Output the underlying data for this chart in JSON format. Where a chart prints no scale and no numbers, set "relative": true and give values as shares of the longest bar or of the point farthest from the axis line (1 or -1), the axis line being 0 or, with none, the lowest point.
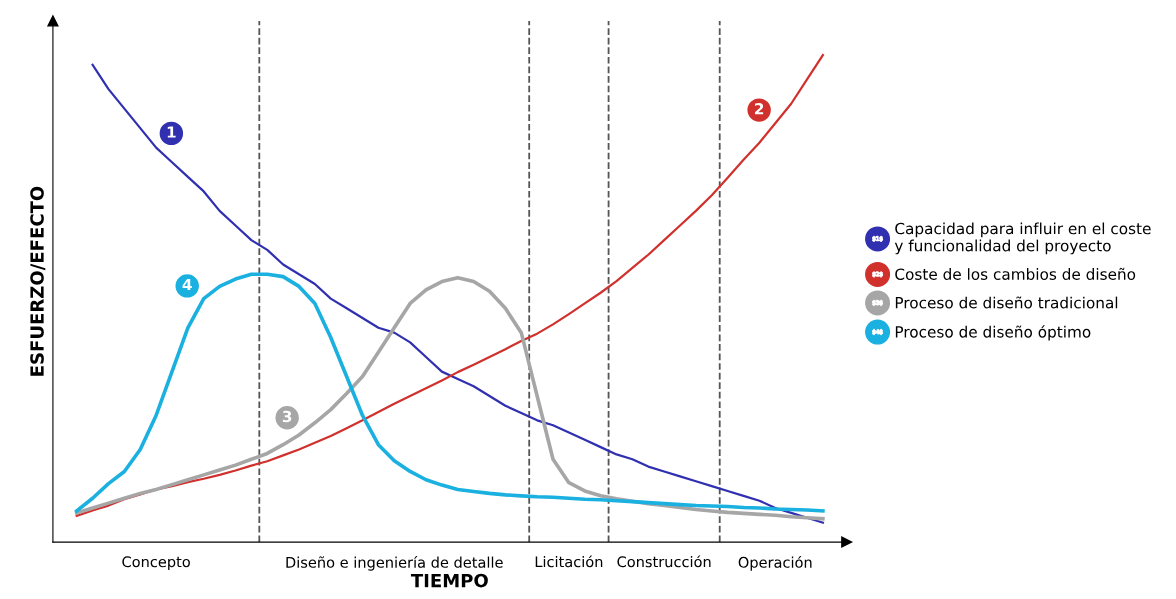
{
  "chart_data": {
    "type": "line",
    "relative": true,
    "xlabel": "TIEMPO",
    "ylabel": "ESFUERZO/EFECTO",
    "categories": [
      null,
      null,
      null,
      null,
      null,
      "Concepto",
      null,
      null,
      null,
      null,
      null,
      null,
      null,
      null,
      null,
      null,
      null,
      null,
      null,
      null,
      "Diseño e ingeniería de detalle",
      null,
      null,
      null,
      null,
      null,
      null,
      null,
      null,
      null,
      null,
      "Licitación",
      null,
      null,
      null,
      null,
      null,
      "Construcción",
      null,
      null,
      null,
      null,
      null,
      null,
      "Operación",
      null,
      null,
      null
    ],
    "tick_labels": "x",
    "grid": false,
    "legend": "right",
    "marker": "none",
    "line_style": "solid",
    "series": [
      {
        "name": "Capacidad para influir en el coste\ny funcionalidad del proyecto",
        "color": "#3030b0",
        "values": [
          null,
          0.98,
          0.93,
          0.89,
          0.85,
          0.81,
          0.78,
          0.75,
          0.72,
          0.68,
          0.65,
          0.62,
          0.6,
          0.57,
          0.55,
          0.53,
          0.5,
          0.48,
          0.46,
          0.44,
          0.43,
          0.41,
          0.38,
          0.35,
          0.335,
          0.32,
          0.3,
          0.28,
          0.265,
          0.25,
          0.24,
          0.225,
          0.21,
          0.195,
          0.18,
          0.17,
          0.155,
          0.145,
          0.135,
          0.125,
          0.115,
          0.105,
          0.095,
          0.085,
          0.07,
          0.06,
          0.05,
          0.04
        ]
      },
      {
        "name": "Coste de los cambios de diseño",
        "color": "#d0312d",
        "values": [
          0.054,
          0.065,
          0.075,
          0.088,
          0.098,
          0.108,
          0.115,
          0.123,
          0.13,
          0.138,
          0.147,
          0.157,
          0.166,
          0.178,
          0.19,
          0.204,
          0.218,
          0.234,
          0.25,
          0.267,
          0.284,
          0.3,
          0.316,
          0.332,
          0.349,
          0.364,
          0.38,
          0.396,
          0.413,
          0.428,
          0.447,
          0.468,
          0.49,
          0.512,
          0.536,
          0.563,
          0.59,
          0.62,
          0.65,
          0.68,
          0.712,
          0.748,
          0.785,
          0.82,
          0.86,
          0.9,
          0.95,
          1.0
        ]
      },
      {
        "name": "Proceso de diseño tradicional",
        "color": "#a6a6a6",
        "values": [
          0.06,
          0.07,
          0.08,
          0.09,
          0.1,
          0.108,
          0.118,
          0.128,
          0.138,
          0.148,
          0.158,
          0.17,
          0.182,
          0.2,
          0.22,
          0.245,
          0.272,
          0.305,
          0.34,
          0.39,
          0.44,
          0.49,
          0.518,
          0.535,
          0.543,
          0.535,
          0.515,
          0.48,
          0.43,
          0.3,
          0.17,
          0.122,
          0.105,
          0.095,
          0.089,
          0.084,
          0.079,
          0.075,
          0.071,
          0.067,
          0.064,
          0.061,
          0.059,
          0.057,
          0.055,
          0.052,
          0.05,
          0.048
        ]
      },
      {
        "name": "Proceso de diseño óptimo",
        "color": "#1ab0e0",
        "values": [
          0.064,
          0.09,
          0.12,
          0.145,
          0.19,
          0.26,
          0.35,
          0.44,
          0.5,
          0.525,
          0.54,
          0.55,
          0.55,
          0.545,
          0.525,
          0.49,
          0.42,
          0.34,
          0.26,
          0.2,
          0.167,
          0.145,
          0.128,
          0.117,
          0.108,
          0.104,
          0.1,
          0.097,
          0.095,
          0.093,
          0.092,
          0.09,
          0.088,
          0.087,
          0.085,
          0.083,
          0.081,
          0.079,
          0.077,
          0.075,
          0.074,
          0.073,
          0.071,
          0.07,
          0.068,
          0.067,
          0.066,
          0.064
        ]
      }
    ],
    "annotations": [
      "1",
      "2",
      "3",
      "4"
    ]
  }
}
